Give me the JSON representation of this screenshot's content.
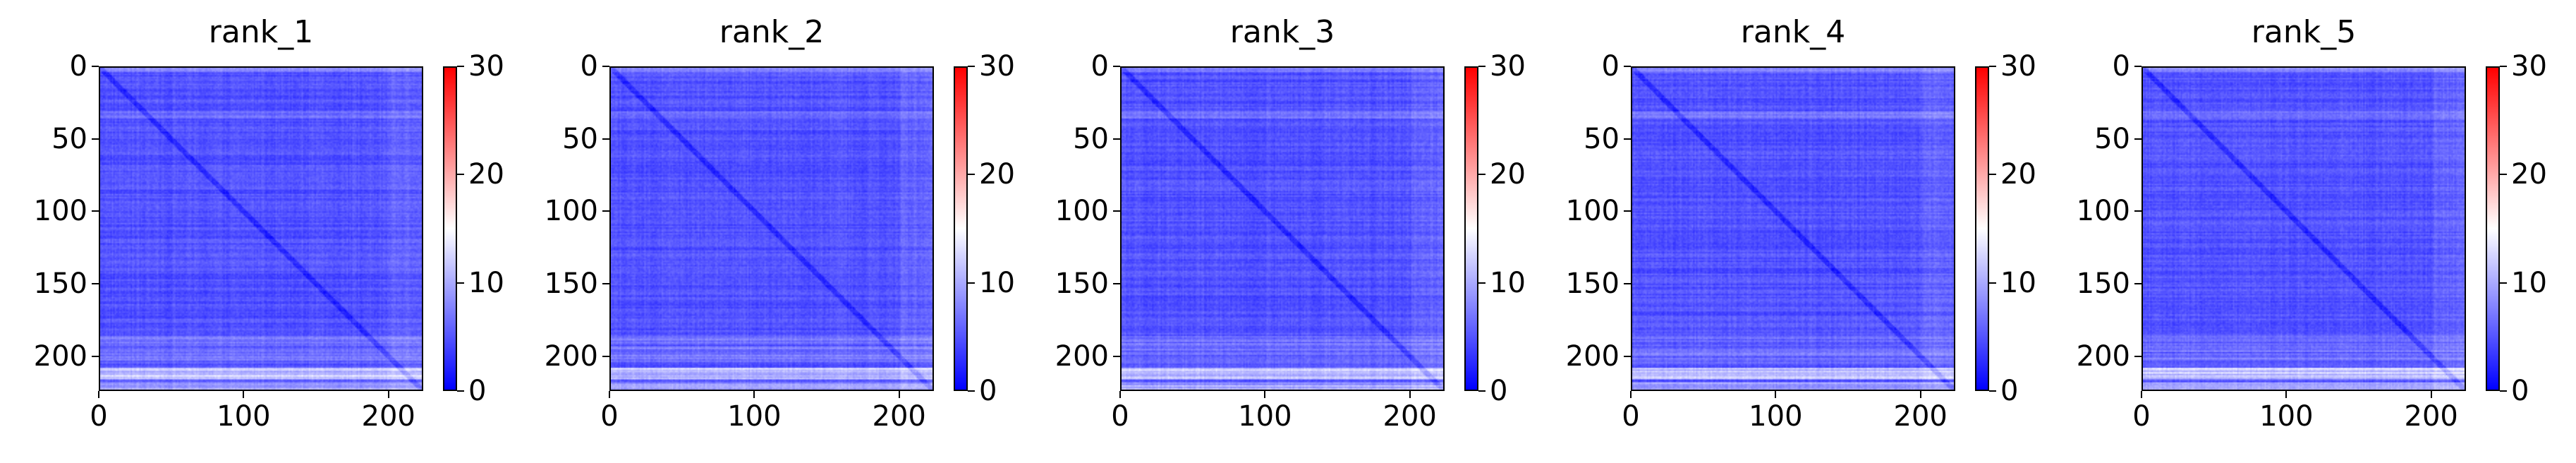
{
  "chart_data": {
    "type": "heatmap",
    "colormap": "bwr",
    "colors": {
      "low": "#0000ff",
      "mid": "#ffffff",
      "high": "#ff0000"
    },
    "matrix_size": 224,
    "value_range": [
      0,
      30
    ],
    "xlim": [
      0,
      224
    ],
    "ylim": [
      224,
      0
    ],
    "x_ticks": [
      0,
      100,
      200
    ],
    "y_ticks": [
      0,
      50,
      100,
      150,
      200
    ],
    "colorbar_ticks": [
      0,
      10,
      20,
      30
    ],
    "panels": [
      {
        "title": "rank_1"
      },
      {
        "title": "rank_2"
      },
      {
        "title": "rank_3"
      },
      {
        "title": "rank_4"
      },
      {
        "title": "rank_5"
      }
    ]
  }
}
